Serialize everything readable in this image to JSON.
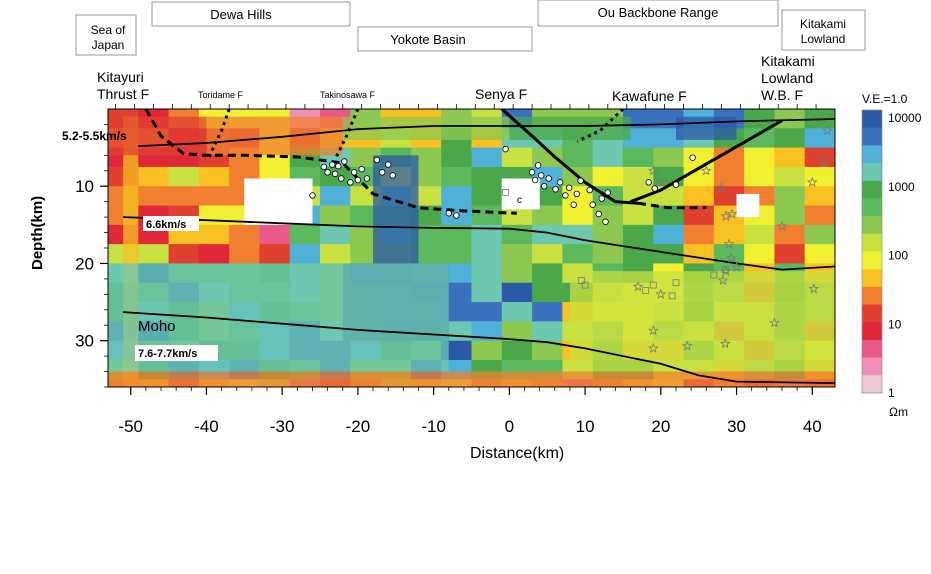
{
  "chart_data": {
    "type": "heatmap",
    "title": "",
    "xlabel": "Distance(km)",
    "ylabel": "Depth(km)",
    "xlim": [
      -53,
      43
    ],
    "ylim": [
      0,
      36
    ],
    "x_ticks": [
      -50,
      -40,
      -30,
      -20,
      -10,
      0,
      10,
      20,
      30,
      40
    ],
    "y_ticks": [
      10,
      20,
      30
    ],
    "regions": [
      "Sea of Japan",
      "Dewa Hills",
      "Yokote Basin",
      "Ou Backbone Range",
      "Kitakami Lowland"
    ],
    "faults": [
      "Kitayuri Thrust F",
      "Toridame F",
      "Takinosawa F",
      "Senya F",
      "Kawafune F",
      "Kitakami Lowland W.B. F"
    ],
    "layer_labels": [
      "5.2-5.5km/s",
      "6.6km/s",
      "Moho",
      "7.6-7.7km/s"
    ],
    "annotation_c": "c",
    "vertical_exaggeration": "V.E.=1.0",
    "colorbar": {
      "scale": "log",
      "unit": "Ωm",
      "tick_labels": [
        "10000",
        "1000",
        "100",
        "10",
        "1"
      ],
      "colors": [
        "#2a5aa8",
        "#3a72c0",
        "#4fb0d8",
        "#6cc8b0",
        "#4aa84a",
        "#5cb85c",
        "#8cc850",
        "#c8e040",
        "#f0f030",
        "#f8c020",
        "#f08030",
        "#e04030",
        "#e02838",
        "#e85888",
        "#f090b8",
        "#f0c8d8"
      ]
    },
    "interfaces": [
      {
        "name": "5.2-5.5km/s",
        "x": [
          -49,
          -40,
          -30,
          -20,
          -10,
          0,
          10,
          20,
          30,
          43
        ],
        "y": [
          4.8,
          4.4,
          3.6,
          2.6,
          2.2,
          2.2,
          2.2,
          2.0,
          1.6,
          1.3
        ]
      },
      {
        "name": "6.6km/s",
        "x": [
          -51,
          -40,
          -30,
          -20,
          -10,
          0,
          5,
          10,
          20,
          30,
          36,
          43
        ],
        "y": [
          14.0,
          14.4,
          14.8,
          15.2,
          15.4,
          15.5,
          16.0,
          17.0,
          18.5,
          20.0,
          20.8,
          20.4
        ]
      },
      {
        "name": "Moho",
        "x": [
          -51,
          -40,
          -30,
          -20,
          -10,
          0,
          5,
          10,
          20,
          25,
          30,
          43
        ],
        "y": [
          26.3,
          27.0,
          27.8,
          28.6,
          29.2,
          29.8,
          30.2,
          31.0,
          33.0,
          34.5,
          35.3,
          35.5
        ]
      }
    ],
    "fault_traces": [
      {
        "name": "Kitayuri Thrust F",
        "style": "dashed",
        "x": [
          -48,
          -46,
          -43,
          -40,
          -35,
          -28,
          -22,
          -18,
          -12,
          -6,
          1
        ],
        "y": [
          0,
          3.5,
          5.8,
          6.0,
          6.0,
          6.2,
          7.0,
          11.0,
          12.8,
          13.2,
          13.5
        ]
      },
      {
        "name": "Toridame F",
        "style": "dotted",
        "x": [
          -37,
          -38,
          -39,
          -39.6
        ],
        "y": [
          0,
          2.8,
          4.8,
          6.2
        ]
      },
      {
        "name": "Takinosawa F",
        "style": "dotted",
        "x": [
          -20,
          -21.5,
          -23
        ],
        "y": [
          0,
          3.5,
          6.5
        ]
      },
      {
        "name": "Senya F",
        "style": "solid",
        "x": [
          -1,
          3,
          6,
          10,
          14,
          17
        ],
        "y": [
          0,
          3.5,
          6.2,
          9.5,
          12,
          12.2
        ]
      },
      {
        "name": "Kawafune F",
        "style": "dotted",
        "x": [
          15,
          12,
          9
        ],
        "y": [
          0,
          2.8,
          4.2
        ]
      },
      {
        "name": "Kitakami Lowland W.B. F",
        "style": "solid",
        "x": [
          36,
          28,
          20,
          16
        ],
        "y": [
          1.5,
          6,
          10.5,
          12
        ]
      },
      {
        "name": "Kawafune F extension",
        "style": "dashed",
        "x": [
          17,
          21,
          26
        ],
        "y": [
          12.2,
          12.8,
          12.8
        ]
      }
    ],
    "earthquakes": {
      "circles": [
        [
          -26,
          11.2
        ],
        [
          -24.5,
          7.5
        ],
        [
          -24,
          8.2
        ],
        [
          -23.4,
          7.2
        ],
        [
          -23,
          8.4
        ],
        [
          -22.6,
          7.4
        ],
        [
          -22.2,
          9
        ],
        [
          -21.8,
          6.8
        ],
        [
          -21,
          9.5
        ],
        [
          -20.5,
          8.2
        ],
        [
          -20,
          9.2
        ],
        [
          -19.5,
          7.8
        ],
        [
          -18.8,
          9
        ],
        [
          -17.5,
          6.6
        ],
        [
          -16.8,
          8.2
        ],
        [
          -16,
          7.2
        ],
        [
          -15.4,
          8.6
        ],
        [
          -8,
          13.5
        ],
        [
          -7,
          13.8
        ],
        [
          -0.5,
          5.2
        ],
        [
          3,
          8.2
        ],
        [
          3.4,
          9.2
        ],
        [
          3.8,
          7.3
        ],
        [
          4.2,
          8.6
        ],
        [
          4.6,
          10
        ],
        [
          5.2,
          9
        ],
        [
          6.1,
          10.4
        ],
        [
          6.7,
          9.5
        ],
        [
          7.4,
          11.2
        ],
        [
          7.9,
          10.2
        ],
        [
          8.5,
          12.4
        ],
        [
          8.9,
          11
        ],
        [
          9.4,
          9.3
        ],
        [
          10.6,
          10.5
        ],
        [
          11,
          12.4
        ],
        [
          11.8,
          13.6
        ],
        [
          12.2,
          11.6
        ],
        [
          12.7,
          14.6
        ],
        [
          13,
          10.8
        ],
        [
          18.4,
          9.5
        ],
        [
          19.2,
          10.3
        ],
        [
          22,
          9.8
        ],
        [
          24.2,
          6.3
        ]
      ],
      "squares": [
        [
          9.5,
          22.2
        ],
        [
          10,
          22.8
        ],
        [
          18,
          23.5
        ],
        [
          19,
          22.8
        ],
        [
          21.5,
          24.2
        ],
        [
          22,
          22.5
        ],
        [
          27,
          21.5
        ],
        [
          28.5,
          20.8
        ],
        [
          -0.5,
          10.8
        ]
      ],
      "stars": [
        [
          19,
          8
        ],
        [
          20,
          9.5
        ],
        [
          26,
          8
        ],
        [
          28,
          10.2
        ],
        [
          28.6,
          13.9
        ],
        [
          29.4,
          13.6
        ],
        [
          36,
          15.2
        ],
        [
          40,
          9.5
        ],
        [
          41.5,
          6.8
        ],
        [
          42,
          2.8
        ],
        [
          29,
          17.5
        ],
        [
          29.3,
          19.3
        ],
        [
          30,
          20.5
        ],
        [
          28.6,
          21
        ],
        [
          28.2,
          22.2
        ],
        [
          40.2,
          23.3
        ],
        [
          20,
          24
        ],
        [
          17,
          23
        ],
        [
          19,
          28.7
        ],
        [
          23.5,
          30.7
        ],
        [
          28.5,
          30.4
        ],
        [
          35,
          27.7
        ],
        [
          19,
          31
        ]
      ]
    },
    "model_blocks": [
      {
        "x": [
          -51,
          -53
        ],
        "y": [
          1,
          36
        ],
        "resistivity": 30
      },
      {
        "x": [
          -53,
          -40
        ],
        "y": [
          1,
          6
        ],
        "resistivity": 15
      },
      {
        "x": [
          -40,
          -22
        ],
        "y": [
          1,
          6
        ],
        "resistivity": 20
      },
      {
        "x": [
          -22,
          0
        ],
        "y": [
          1,
          4
        ],
        "resistivity": 300
      },
      {
        "x": [
          0,
          16
        ],
        "y": [
          1,
          4
        ],
        "resistivity": 1000
      },
      {
        "x": [
          22,
          30
        ],
        "y": [
          1,
          4
        ],
        "resistivity": 10000
      },
      {
        "x": [
          -35,
          -26
        ],
        "y": [
          9,
          15
        ],
        "resistivity": 1
      },
      {
        "x": [
          -18,
          -12
        ],
        "y": [
          6,
          20
        ],
        "resistivity": 10000
      },
      {
        "x": [
          -22,
          -8
        ],
        "y": [
          20,
          30
        ],
        "resistivity": 10000
      },
      {
        "x": [
          -1,
          4
        ],
        "y": [
          9,
          13
        ],
        "resistivity": 1
      },
      {
        "x": [
          30,
          33
        ],
        "y": [
          11,
          14
        ],
        "resistivity": 1
      },
      {
        "x": [
          8,
          43
        ],
        "y": [
          21,
          34
        ],
        "resistivity": 150
      },
      {
        "x": [
          -53,
          -8
        ],
        "y": [
          20,
          34
        ],
        "resistivity": 1500
      },
      {
        "x": [
          -53,
          43
        ],
        "y": [
          34,
          36
        ],
        "resistivity": 20
      }
    ]
  }
}
